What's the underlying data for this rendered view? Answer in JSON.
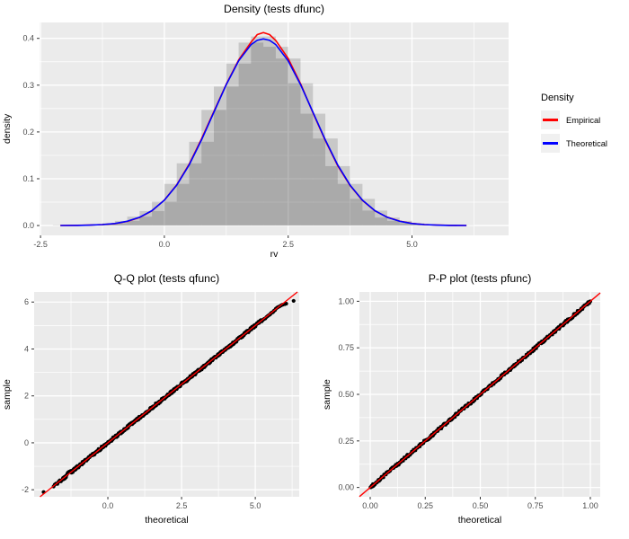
{
  "theme": {
    "page_background": "#FFFFFF",
    "panel_background": "#EBEBEB",
    "grid_color": "#FFFFFF",
    "tick_text_color": "#4D4D4D",
    "tick_mark_color": "#333333",
    "bar_color": "#000000",
    "bar_opacity": 0.148,
    "point_color": "#000000",
    "empirical_color": "#FF0000",
    "theoretical_color": "#0000FF",
    "refline_color": "#FF0000"
  },
  "legend": {
    "title": "Density",
    "items": [
      {
        "label": "Empirical",
        "color": "#FF0000"
      },
      {
        "label": "Theoretical",
        "color": "#0000FF"
      }
    ]
  },
  "chart_data": [
    {
      "id": "density",
      "type": "bar",
      "subtype": "histogram-with-density-curves",
      "title": "Density (tests dfunc)",
      "xlabel": "rv",
      "ylabel": "density",
      "xlim": [
        -2.52,
        6.95
      ],
      "ylim": [
        -0.021,
        0.434
      ],
      "xticks": {
        "values": [
          -2.5,
          0,
          2.5,
          5
        ],
        "labels": [
          "-2.5",
          "0.0",
          "2.5",
          "5.0"
        ]
      },
      "yticks": {
        "values": [
          0,
          0.1,
          0.2,
          0.3,
          0.4
        ],
        "labels": [
          "0.0",
          "0.1",
          "0.2",
          "0.3",
          "0.4"
        ]
      },
      "binwidth": 0.5,
      "hist_a": {
        "centers": [
          -2,
          -1.5,
          -1,
          -0.5,
          0,
          0.5,
          1,
          1.5,
          2,
          2.5,
          3,
          3.5,
          4,
          4.5,
          5,
          5.5,
          6
        ],
        "densities": [
          0.001,
          0.002,
          0.005,
          0.019,
          0.051,
          0.133,
          0.247,
          0.346,
          0.404,
          0.357,
          0.239,
          0.127,
          0.057,
          0.017,
          0.005,
          0.001,
          0.0005
        ]
      },
      "hist_b": {
        "centers": [
          -1.75,
          -1.25,
          -0.75,
          -0.25,
          0.25,
          0.75,
          1.25,
          1.75,
          2.25,
          2.75,
          3.25,
          3.75,
          4.25,
          4.75,
          5.25,
          5.75
        ],
        "densities": [
          0.001,
          0.003,
          0.01,
          0.031,
          0.089,
          0.179,
          0.297,
          0.391,
          0.382,
          0.304,
          0.186,
          0.089,
          0.032,
          0.01,
          0.002,
          0.001
        ]
      },
      "series": [
        {
          "name": "Empirical",
          "color": "#FF0000",
          "points": [
            [
              -2.1,
              0.0002
            ],
            [
              -1.75,
              0.0005
            ],
            [
              -1.5,
              0.001
            ],
            [
              -1.25,
              0.002
            ],
            [
              -1,
              0.0042
            ],
            [
              -0.75,
              0.0088
            ],
            [
              -0.5,
              0.0172
            ],
            [
              -0.25,
              0.0315
            ],
            [
              0,
              0.0545
            ],
            [
              0.25,
              0.087
            ],
            [
              0.5,
              0.131
            ],
            [
              0.75,
              0.185
            ],
            [
              1,
              0.2435
            ],
            [
              1.25,
              0.302
            ],
            [
              1.5,
              0.354
            ],
            [
              1.75,
              0.392
            ],
            [
              1.875,
              0.408
            ],
            [
              2,
              0.4125
            ],
            [
              2.125,
              0.408
            ],
            [
              2.25,
              0.3955
            ],
            [
              2.5,
              0.357
            ],
            [
              2.75,
              0.303
            ],
            [
              3,
              0.2408
            ],
            [
              3.25,
              0.1815
            ],
            [
              3.5,
              0.128
            ],
            [
              3.75,
              0.0855
            ],
            [
              4,
              0.0536
            ],
            [
              4.25,
              0.0315
            ],
            [
              4.5,
              0.0178
            ],
            [
              4.75,
              0.0095
            ],
            [
              5,
              0.0046
            ],
            [
              5.25,
              0.0021
            ],
            [
              5.5,
              0.001
            ],
            [
              5.75,
              0.0005
            ],
            [
              6.1,
              0.0002
            ]
          ]
        },
        {
          "name": "Theoretical",
          "color": "#0000FF",
          "points": [
            [
              -2.1,
              0.0001
            ],
            [
              -1.75,
              0.0004
            ],
            [
              -1.5,
              0.0009
            ],
            [
              -1.25,
              0.002
            ],
            [
              -1,
              0.0044
            ],
            [
              -0.75,
              0.0091
            ],
            [
              -0.5,
              0.0175
            ],
            [
              -0.25,
              0.0317
            ],
            [
              0,
              0.054
            ],
            [
              0.25,
              0.0863
            ],
            [
              0.5,
              0.1295
            ],
            [
              0.75,
              0.1826
            ],
            [
              1,
              0.242
            ],
            [
              1.25,
              0.3011
            ],
            [
              1.5,
              0.3521
            ],
            [
              1.75,
              0.3867
            ],
            [
              1.875,
              0.3958
            ],
            [
              2,
              0.3989
            ],
            [
              2.125,
              0.3958
            ],
            [
              2.25,
              0.3867
            ],
            [
              2.5,
              0.3521
            ],
            [
              2.75,
              0.3011
            ],
            [
              3,
              0.242
            ],
            [
              3.25,
              0.1826
            ],
            [
              3.5,
              0.1295
            ],
            [
              3.75,
              0.0863
            ],
            [
              4,
              0.054
            ],
            [
              4.25,
              0.0317
            ],
            [
              4.5,
              0.0175
            ],
            [
              4.75,
              0.0091
            ],
            [
              5,
              0.0044
            ],
            [
              5.25,
              0.002
            ],
            [
              5.5,
              0.0009
            ],
            [
              5.75,
              0.0004
            ],
            [
              6.1,
              0.0001
            ]
          ]
        }
      ]
    },
    {
      "id": "qq",
      "type": "scatter",
      "title": "Q-Q plot (tests qfunc)",
      "xlabel": "theoretical",
      "ylabel": "sample",
      "xlim": [
        -2.5,
        6.49
      ],
      "ylim": [
        -2.3,
        6.43
      ],
      "xticks": {
        "values": [
          0,
          2.5,
          5
        ],
        "labels": [
          "0.0",
          "2.5",
          "5.0"
        ]
      },
      "yticks": {
        "values": [
          -2,
          0,
          2,
          4,
          6
        ],
        "labels": [
          "-2",
          "0",
          "2",
          "4",
          "6"
        ]
      },
      "refline": {
        "from": [
          -2.3,
          -2.3
        ],
        "to": [
          6.43,
          6.43
        ],
        "color": "#FF0000"
      },
      "point_radius": 2.1,
      "seed": 7,
      "dense_band": {
        "from": -1.25,
        "to": 5.2,
        "step": 0.017,
        "jitter": 0.055
      },
      "points": [
        [
          -2.18,
          -2.1
        ],
        [
          -1.84,
          -1.86
        ],
        [
          -1.8,
          -1.78
        ],
        [
          -1.76,
          -1.74
        ],
        [
          -1.71,
          -1.75
        ],
        [
          -1.67,
          -1.66
        ],
        [
          -1.63,
          -1.6
        ],
        [
          -1.59,
          -1.64
        ],
        [
          -1.55,
          -1.58
        ],
        [
          -1.52,
          -1.5
        ],
        [
          -1.5,
          -1.55
        ],
        [
          -1.48,
          -1.46
        ],
        [
          -1.46,
          -1.52
        ],
        [
          -1.44,
          -1.43
        ],
        [
          -1.42,
          -1.47
        ],
        [
          -1.4,
          -1.38
        ],
        [
          -1.37,
          -1.31
        ],
        [
          -1.35,
          -1.27
        ],
        [
          -1.33,
          -1.25
        ],
        [
          -1.31,
          -1.23
        ],
        [
          -1.29,
          -1.24
        ],
        [
          -1.27,
          -1.21
        ],
        [
          -1.25,
          -1.2
        ],
        [
          -1.23,
          -1.22
        ],
        [
          -1.21,
          -1.19
        ],
        [
          -1.19,
          -1.25
        ],
        [
          -1.17,
          -1.14
        ],
        [
          -1.14,
          -1.1
        ],
        [
          -1.11,
          -1.08
        ],
        [
          -1.08,
          -1.05
        ],
        [
          -1.05,
          -1.03
        ],
        [
          -1.02,
          -1.0
        ],
        [
          5.22,
          5.18
        ],
        [
          5.26,
          5.24
        ],
        [
          5.3,
          5.28
        ],
        [
          5.34,
          5.3
        ],
        [
          5.38,
          5.36
        ],
        [
          5.42,
          5.4
        ],
        [
          5.46,
          5.44
        ],
        [
          5.5,
          5.47
        ],
        [
          5.53,
          5.52
        ],
        [
          5.56,
          5.55
        ],
        [
          5.6,
          5.57
        ],
        [
          5.63,
          5.62
        ],
        [
          5.67,
          5.66
        ],
        [
          5.7,
          5.72
        ],
        [
          5.74,
          5.76
        ],
        [
          5.78,
          5.79
        ],
        [
          5.83,
          5.82
        ],
        [
          5.88,
          5.86
        ],
        [
          5.93,
          5.89
        ],
        [
          5.99,
          5.91
        ],
        [
          6.05,
          5.93
        ],
        [
          6.3,
          6.05
        ]
      ]
    },
    {
      "id": "pp",
      "type": "scatter",
      "title": "P-P plot (tests pfunc)",
      "xlabel": "theoretical",
      "ylabel": "sample",
      "xlim": [
        -0.049,
        1.045
      ],
      "ylim": [
        -0.05,
        1.05
      ],
      "xticks": {
        "values": [
          0,
          0.25,
          0.5,
          0.75,
          1
        ],
        "labels": [
          "0.00",
          "0.25",
          "0.50",
          "0.75",
          "1.00"
        ]
      },
      "yticks": {
        "values": [
          0,
          0.25,
          0.5,
          0.75,
          1
        ],
        "labels": [
          "0.00",
          "0.25",
          "0.50",
          "0.75",
          "1.00"
        ]
      },
      "refline": {
        "from": [
          -0.049,
          -0.049
        ],
        "to": [
          1.045,
          1.045
        ],
        "color": "#FF0000"
      },
      "point_radius": 2.0,
      "seed": 13,
      "dense_band": {
        "from": 0.004,
        "to": 0.996,
        "step": 0.0028,
        "jitter": 0.007
      },
      "points": [
        [
          0.001,
          0.0005
        ],
        [
          0.003,
          0.002
        ],
        [
          0.005,
          0.004
        ],
        [
          0.997,
          0.998
        ],
        [
          0.999,
          0.999
        ],
        [
          1.0,
          1.0
        ]
      ]
    }
  ]
}
